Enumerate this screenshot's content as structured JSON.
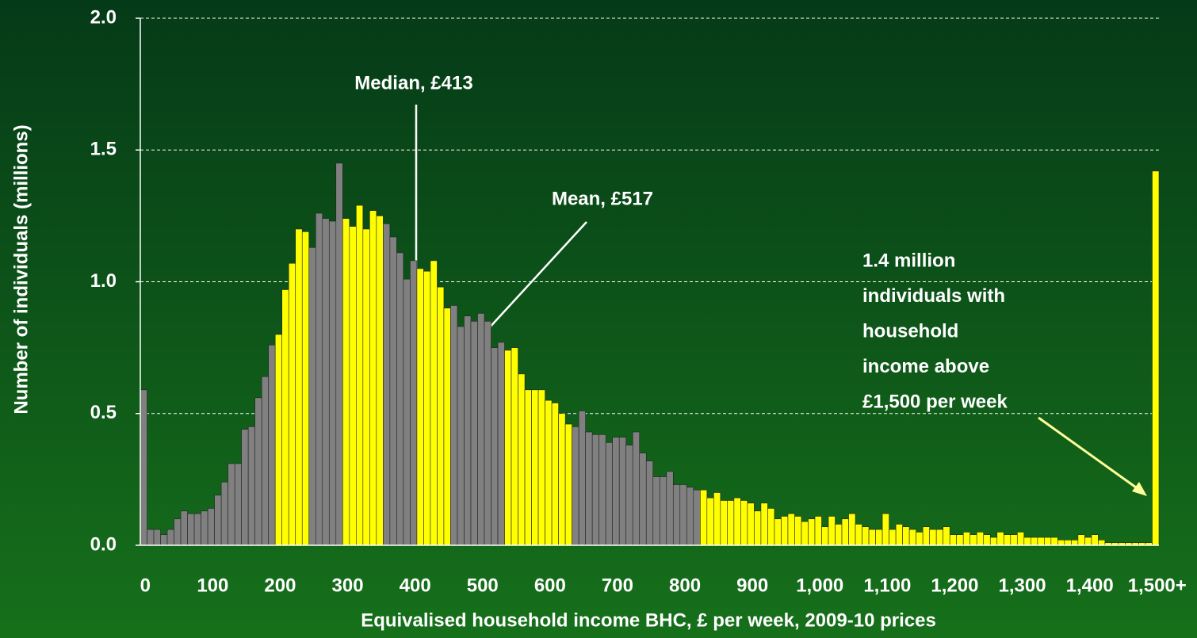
{
  "chart_data": {
    "type": "bar",
    "y_label": "Number of individuals (millions)",
    "x_label": "Equivalised household income BHC, £ per week, 2009-10 prices",
    "categories": [
      "0",
      null,
      null,
      null,
      null,
      null,
      null,
      null,
      null,
      null,
      "100",
      null,
      null,
      null,
      null,
      null,
      null,
      null,
      null,
      null,
      "200",
      null,
      null,
      null,
      null,
      null,
      null,
      null,
      null,
      null,
      "300",
      null,
      null,
      null,
      null,
      null,
      null,
      null,
      null,
      null,
      "400",
      null,
      null,
      null,
      null,
      null,
      null,
      null,
      null,
      null,
      "500",
      null,
      null,
      null,
      null,
      null,
      null,
      null,
      null,
      null,
      "600",
      null,
      null,
      null,
      null,
      null,
      null,
      null,
      null,
      null,
      "700",
      null,
      null,
      null,
      null,
      null,
      null,
      null,
      null,
      null,
      "800",
      null,
      null,
      null,
      null,
      null,
      null,
      null,
      null,
      null,
      "900",
      null,
      null,
      null,
      null,
      null,
      null,
      null,
      null,
      null,
      "1,000",
      null,
      null,
      null,
      null,
      null,
      null,
      null,
      null,
      null,
      "1,100",
      null,
      null,
      null,
      null,
      null,
      null,
      null,
      null,
      null,
      "1,200",
      null,
      null,
      null,
      null,
      null,
      null,
      null,
      null,
      null,
      "1,300",
      null,
      null,
      null,
      null,
      null,
      null,
      null,
      null,
      null,
      "1,400",
      null,
      null,
      null,
      null,
      null,
      null,
      null,
      null,
      null,
      "1,500+"
    ],
    "values": [
      0.59,
      0.06,
      0.06,
      0.04,
      0.06,
      0.1,
      0.13,
      0.12,
      0.12,
      0.13,
      0.14,
      0.19,
      0.24,
      0.31,
      0.31,
      0.44,
      0.45,
      0.56,
      0.64,
      0.76,
      0.8,
      0.97,
      1.07,
      1.2,
      1.19,
      1.13,
      1.26,
      1.24,
      1.23,
      1.45,
      1.24,
      1.21,
      1.29,
      1.2,
      1.27,
      1.25,
      1.22,
      1.17,
      1.11,
      1.01,
      1.08,
      1.05,
      1.04,
      1.08,
      0.98,
      0.9,
      0.91,
      0.83,
      0.87,
      0.85,
      0.88,
      0.85,
      0.75,
      0.77,
      0.74,
      0.75,
      0.65,
      0.59,
      0.59,
      0.59,
      0.55,
      0.54,
      0.5,
      0.46,
      0.45,
      0.51,
      0.43,
      0.42,
      0.42,
      0.39,
      0.41,
      0.41,
      0.38,
      0.43,
      0.35,
      0.32,
      0.26,
      0.26,
      0.28,
      0.23,
      0.23,
      0.22,
      0.21,
      0.21,
      0.18,
      0.2,
      0.17,
      0.17,
      0.18,
      0.17,
      0.16,
      0.13,
      0.16,
      0.14,
      0.1,
      0.11,
      0.12,
      0.11,
      0.09,
      0.1,
      0.11,
      0.07,
      0.11,
      0.08,
      0.1,
      0.12,
      0.08,
      0.07,
      0.06,
      0.06,
      0.12,
      0.06,
      0.08,
      0.07,
      0.06,
      0.05,
      0.07,
      0.06,
      0.06,
      0.07,
      0.04,
      0.04,
      0.05,
      0.04,
      0.05,
      0.04,
      0.03,
      0.05,
      0.04,
      0.04,
      0.05,
      0.03,
      0.03,
      0.03,
      0.03,
      0.03,
      0.02,
      0.02,
      0.02,
      0.04,
      0.03,
      0.04,
      0.02,
      0.01,
      0.01,
      0.01,
      0.01,
      0.01,
      0.01,
      0.01,
      1.42
    ],
    "colors": [
      "#808080",
      "#808080",
      "#808080",
      "#808080",
      "#808080",
      "#808080",
      "#808080",
      "#808080",
      "#808080",
      "#808080",
      "#808080",
      "#808080",
      "#808080",
      "#808080",
      "#808080",
      "#808080",
      "#808080",
      "#808080",
      "#808080",
      "#808080",
      "#ffff00",
      "#ffff00",
      "#ffff00",
      "#ffff00",
      "#ffff00",
      "#808080",
      "#808080",
      "#808080",
      "#808080",
      "#808080",
      "#ffff00",
      "#ffff00",
      "#ffff00",
      "#ffff00",
      "#ffff00",
      "#ffff00",
      "#808080",
      "#808080",
      "#808080",
      "#808080",
      "#808080",
      "#ffff00",
      "#ffff00",
      "#ffff00",
      "#ffff00",
      "#ffff00",
      "#808080",
      "#808080",
      "#808080",
      "#808080",
      "#808080",
      "#808080",
      "#808080",
      "#808080",
      "#ffff00",
      "#ffff00",
      "#ffff00",
      "#ffff00",
      "#ffff00",
      "#ffff00",
      "#ffff00",
      "#ffff00",
      "#ffff00",
      "#ffff00",
      "#808080",
      "#808080",
      "#808080",
      "#808080",
      "#808080",
      "#808080",
      "#808080",
      "#808080",
      "#808080",
      "#808080",
      "#808080",
      "#808080",
      "#808080",
      "#808080",
      "#808080",
      "#808080",
      "#808080",
      "#808080",
      "#808080",
      "#ffff00",
      "#ffff00",
      "#ffff00",
      "#ffff00",
      "#ffff00",
      "#ffff00",
      "#ffff00",
      "#ffff00",
      "#ffff00",
      "#ffff00",
      "#ffff00",
      "#ffff00",
      "#ffff00",
      "#ffff00",
      "#ffff00",
      "#ffff00",
      "#ffff00",
      "#ffff00",
      "#ffff00",
      "#ffff00",
      "#ffff00",
      "#ffff00",
      "#ffff00",
      "#ffff00",
      "#ffff00",
      "#ffff00",
      "#ffff00",
      "#ffff00",
      "#ffff00",
      "#ffff00",
      "#ffff00",
      "#ffff00",
      "#ffff00",
      "#ffff00",
      "#ffff00",
      "#ffff00",
      "#ffff00",
      "#ffff00",
      "#ffff00",
      "#ffff00",
      "#ffff00",
      "#ffff00",
      "#ffff00",
      "#ffff00",
      "#ffff00",
      "#ffff00",
      "#ffff00",
      "#ffff00",
      "#ffff00",
      "#ffff00",
      "#ffff00",
      "#ffff00",
      "#ffff00",
      "#ffff00",
      "#ffff00",
      "#ffff00",
      "#ffff00",
      "#ffff00",
      "#ffff00",
      "#ffff00",
      "#ffff00",
      "#ffff00",
      "#ffff00",
      "#ffff00",
      "#ffff00",
      "#ffff00",
      "#ffff00",
      "#ffff00"
    ],
    "ylim": [
      0,
      2
    ],
    "yticks": [
      {
        "value": 0,
        "label": "0.0"
      },
      0.5,
      {
        "value": 1,
        "label": "1.0"
      },
      1.5,
      {
        "value": 2,
        "label": "2.0"
      }
    ],
    "grid": true,
    "annotations": {
      "median": "Median, £413",
      "mean": "Mean, £517",
      "top": [
        "1.4  million",
        "individuals with",
        "household",
        "income above",
        "£1,500 per week"
      ]
    }
  }
}
